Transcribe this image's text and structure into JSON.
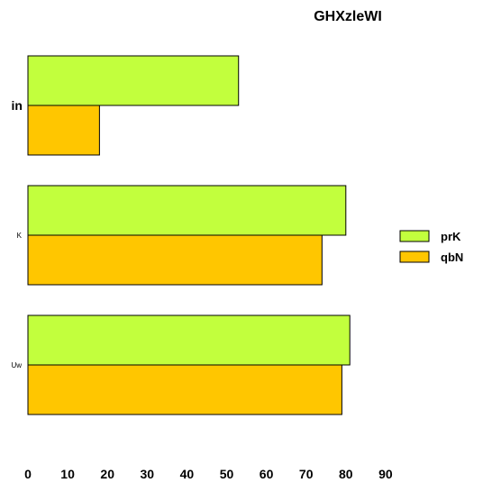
{
  "chart_data": {
    "type": "bar",
    "orientation": "horizontal",
    "title": "GHXzleWI",
    "categories": [
      "in",
      "K",
      "Uw"
    ],
    "series": [
      {
        "name": "prK",
        "color": "#c2ff3d",
        "values": [
          53,
          80,
          81
        ]
      },
      {
        "name": "qbN",
        "color": "#ffc600",
        "values": [
          18,
          74,
          79
        ]
      }
    ],
    "xlim": [
      0,
      90
    ],
    "xticks": [
      "0",
      "10",
      "20",
      "30",
      "40",
      "50",
      "60",
      "70",
      "80",
      "90"
    ],
    "grid": false,
    "legend_position": "right"
  }
}
